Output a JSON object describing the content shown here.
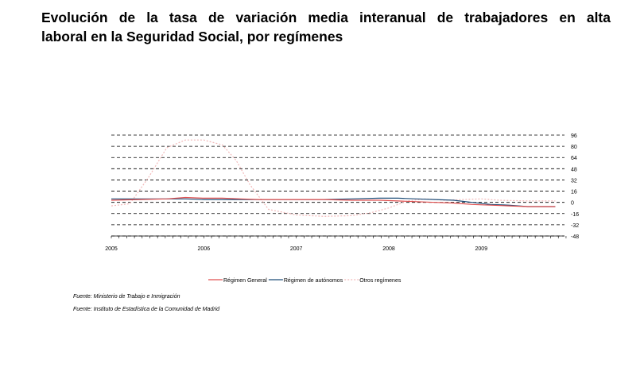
{
  "title": {
    "line1": "Evolución de la tasa de variación media interanual de trabajadores en alta",
    "line2": "laboral en la Seguridad Social, por  regímenes"
  },
  "sources": [
    "Fuente: Ministerio de Trabajo e Inmigración",
    "Fuente: Instituto de Estadística de la Comunidad de Madrid"
  ],
  "colors": {
    "general": "#e05050",
    "autonomos": "#1f4e79",
    "otros": "#f2b8b8",
    "grid": "#000000"
  },
  "chart_data": {
    "type": "line",
    "grid": true,
    "legend_position": "bottom",
    "y_range": [
      -48,
      96
    ],
    "y_ticks": [
      96,
      80,
      64,
      48,
      32,
      16,
      0,
      -16,
      -32,
      -48
    ],
    "x_range": [
      2005,
      2009.9
    ],
    "x_tick_labels": [
      "2005",
      "2006",
      "2007",
      "2008",
      "2009"
    ],
    "series": [
      {
        "name": "Régimen General",
        "color_key": "general",
        "dash": "",
        "x": [
          2005.0,
          2005.3,
          2005.6,
          2005.8,
          2006.0,
          2006.2,
          2006.4,
          2006.6,
          2006.8,
          2007.0,
          2007.3,
          2007.6,
          2007.9,
          2008.1,
          2008.3,
          2008.5,
          2008.7,
          2008.9,
          2009.1,
          2009.3,
          2009.5,
          2009.8
        ],
        "y": [
          3,
          4,
          5,
          7,
          6,
          6,
          5,
          4,
          4,
          4,
          4,
          3,
          3,
          2,
          1,
          0,
          -1,
          -3,
          -4,
          -5,
          -6,
          -6
        ]
      },
      {
        "name": "Régimen de autónomos",
        "color_key": "autonomos",
        "dash": "",
        "x": [
          2005.0,
          2005.3,
          2005.6,
          2005.8,
          2006.0,
          2006.2,
          2006.4,
          2006.6,
          2006.8,
          2007.0,
          2007.3,
          2007.6,
          2007.9,
          2008.1,
          2008.3,
          2008.5,
          2008.7,
          2008.9,
          2009.1,
          2009.3,
          2009.5,
          2009.8
        ],
        "y": [
          5,
          5,
          5,
          5,
          4,
          4,
          4,
          4,
          4,
          4,
          4,
          5,
          6,
          6,
          5,
          4,
          3,
          0,
          -3,
          -4,
          -6,
          -6
        ]
      },
      {
        "name": "Otros regímenes",
        "color_key": "otros",
        "dash": "2,2",
        "x": [
          2005.0,
          2005.2,
          2005.4,
          2005.6,
          2005.8,
          2006.0,
          2006.2,
          2006.35,
          2006.5,
          2006.7,
          2007.0,
          2007.3,
          2007.6,
          2007.8,
          2008.0,
          2008.2,
          2008.4,
          2008.6,
          2008.8,
          2009.0,
          2009.2,
          2009.5,
          2009.8
        ],
        "y": [
          -5,
          -2,
          35,
          78,
          89,
          89,
          82,
          60,
          25,
          -10,
          -18,
          -20,
          -19,
          -15,
          -8,
          2,
          5,
          3,
          4,
          5,
          3,
          2,
          2
        ]
      }
    ]
  }
}
